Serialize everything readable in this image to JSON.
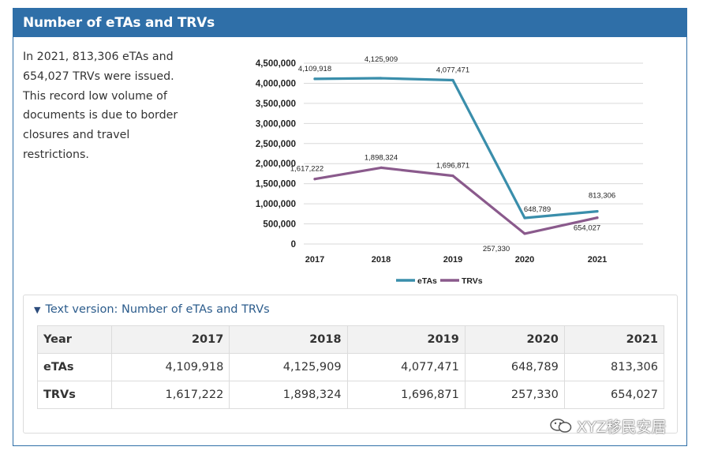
{
  "header": {
    "title": "Number of eTAs and TRVs"
  },
  "description": "In 2021, 813,306 eTAs and 654,027 TRVs were issued. This record low volume of documents is due to border closures and travel restrictions.",
  "chart_data": {
    "type": "line",
    "title": "Number of eTAs and TRVs",
    "categories": [
      "2017",
      "2018",
      "2019",
      "2020",
      "2021"
    ],
    "series": [
      {
        "name": "eTAs",
        "color": "#3a8eab",
        "values": [
          4109918,
          4125909,
          4077471,
          648789,
          813306
        ],
        "labels": [
          "4,109,918",
          "4,125,909",
          "4,077,471",
          "648,789",
          "813,306"
        ]
      },
      {
        "name": "TRVs",
        "color": "#8a5a8c",
        "values": [
          1617222,
          1898324,
          1696871,
          257330,
          654027
        ],
        "labels": [
          "1,617,222",
          "1,898,324",
          "1,696,871",
          "257,330",
          "654,027"
        ]
      }
    ],
    "y_ticks": [
      {
        "value": 0,
        "label": "0"
      },
      {
        "value": 500000,
        "label": "500,000"
      },
      {
        "value": 1000000,
        "label": "1,000,000"
      },
      {
        "value": 1500000,
        "label": "1,500,000"
      },
      {
        "value": 2000000,
        "label": "2,000,000"
      },
      {
        "value": 2500000,
        "label": "2,500,000"
      },
      {
        "value": 3000000,
        "label": "3,000,000"
      },
      {
        "value": 3500000,
        "label": "3,500,000"
      },
      {
        "value": 4000000,
        "label": "4,000,000"
      },
      {
        "value": 4500000,
        "label": "4,500,000"
      }
    ],
    "ylim": [
      0,
      4500000
    ],
    "grid": true,
    "legend": "bottom-center",
    "xlabel": "",
    "ylabel": ""
  },
  "text_version": {
    "summary": "Text version: Number of eTAs and TRVs",
    "headers": [
      "Year",
      "2017",
      "2018",
      "2019",
      "2020",
      "2021"
    ],
    "rows": [
      [
        "eTAs",
        "4,109,918",
        "4,125,909",
        "4,077,471",
        "648,789",
        "813,306"
      ],
      [
        "TRVs",
        "1,617,222",
        "1,898,324",
        "1,696,871",
        "257,330",
        "654,027"
      ]
    ]
  },
  "watermark": "XYZ移民安居"
}
